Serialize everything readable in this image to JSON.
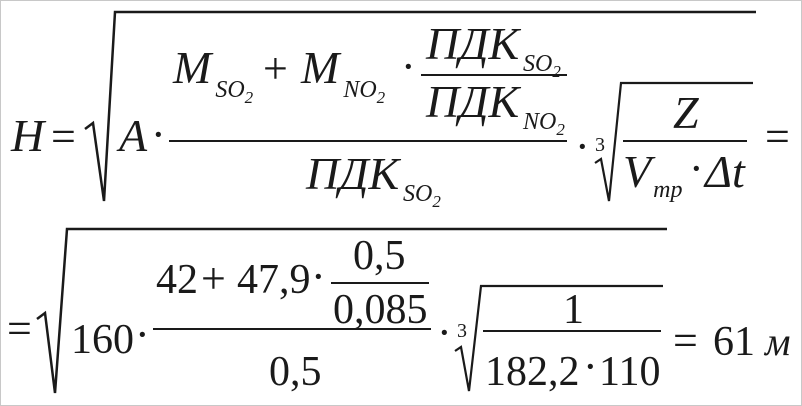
{
  "formula": {
    "lhs": "H",
    "eq": "=",
    "A": "A",
    "dot": "·",
    "M": "M",
    "sub_so": "SO",
    "sub_no": "NO",
    "sub_2": "2",
    "plus": "+",
    "pdk": "ПДК",
    "Z": "Z",
    "V": "V",
    "sub_tr": "тр",
    "delta_t": "Δt",
    "root3": "3"
  },
  "numeric": {
    "eq": "=",
    "a": "160",
    "m_so2": "42",
    "plus": "+",
    "m_no2": "47,9",
    "pdk_so2": "0,5",
    "pdk_no2": "0,085",
    "denominator": "0,5",
    "z": "1",
    "v": "182,2",
    "dt": "110",
    "dot": "·",
    "root3": "3",
    "result": "61",
    "unit": "м"
  }
}
